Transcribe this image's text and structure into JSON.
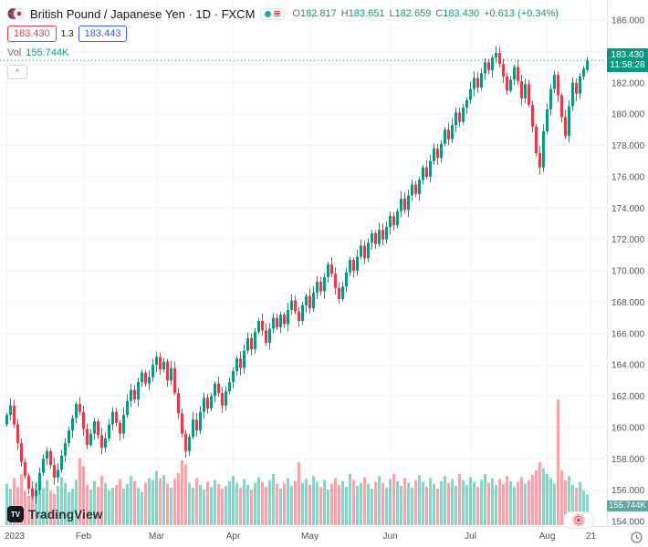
{
  "header": {
    "symbol_title": "British Pound / Japanese Yen · 1D · FXCM",
    "ohlc": {
      "o_label": "O",
      "o": "182.817",
      "h_label": "H",
      "h": "183.651",
      "l_label": "L",
      "l": "182.659",
      "c_label": "C",
      "c": "183.430",
      "change": "+0.613 (+0.34%)"
    },
    "sell": "183.430",
    "spread": "1.3",
    "buy": "183.443",
    "vol_label": "Vol",
    "vol_value": "155.744K"
  },
  "icons": {
    "chevron_up": "^",
    "tv_mark": "TV"
  },
  "badges": {
    "last_price": "183.430",
    "last_time": "11:58:28",
    "volume": "155.744K"
  },
  "footer": {
    "logo_text": "TradingView"
  },
  "chart_data": {
    "type": "candlestick",
    "title": "British Pound / Japanese Yen",
    "interval": "1D",
    "exchange": "FXCM",
    "last": {
      "open": 182.817,
      "high": 183.651,
      "low": 182.659,
      "close": 183.43,
      "change": "+0.613",
      "change_pct": "+0.34%",
      "time": "11:58:28",
      "volume_k": 155.744
    },
    "price_axis": {
      "min": 154,
      "max": 186,
      "step": 2,
      "decimals": 3
    },
    "time_ticks": [
      {
        "label": "2023",
        "index": 0
      },
      {
        "label": "Feb",
        "index": 21
      },
      {
        "label": "Mar",
        "index": 41
      },
      {
        "label": "Apr",
        "index": 62
      },
      {
        "label": "May",
        "index": 83
      },
      {
        "label": "Jun",
        "index": 105
      },
      {
        "label": "Jul",
        "index": 127
      },
      {
        "label": "Aug",
        "index": 148
      },
      {
        "label": "21",
        "index": 160
      }
    ],
    "first_open": 160.2,
    "closes": [
      160.8,
      161.4,
      160.2,
      159.0,
      157.8,
      156.9,
      156.1,
      155.6,
      156.0,
      157.1,
      158.0,
      158.5,
      157.6,
      156.8,
      157.3,
      158.2,
      159.0,
      159.8,
      160.6,
      161.5,
      161.0,
      159.9,
      158.9,
      159.6,
      160.4,
      159.5,
      158.7,
      159.3,
      160.2,
      161.0,
      160.3,
      159.6,
      160.8,
      161.7,
      162.4,
      161.8,
      162.9,
      163.5,
      162.8,
      163.2,
      164.0,
      164.5,
      163.7,
      164.2,
      163.0,
      163.8,
      162.2,
      160.9,
      159.6,
      158.5,
      159.4,
      160.5,
      159.8,
      161.0,
      161.9,
      161.2,
      162.0,
      162.8,
      162.2,
      161.4,
      162.3,
      162.9,
      163.6,
      164.4,
      163.8,
      164.9,
      165.7,
      165.0,
      166.1,
      166.8,
      166.2,
      165.4,
      166.3,
      167.0,
      166.4,
      167.2,
      166.6,
      167.5,
      168.1,
      167.4,
      166.8,
      167.8,
      168.4,
      167.6,
      168.6,
      169.3,
      168.7,
      169.6,
      170.4,
      169.8,
      168.9,
      168.2,
      169.0,
      169.9,
      170.7,
      170.0,
      170.9,
      171.6,
      170.8,
      171.8,
      172.4,
      171.7,
      172.6,
      172.0,
      172.8,
      173.5,
      172.9,
      173.8,
      174.6,
      173.9,
      174.8,
      175.5,
      174.9,
      175.8,
      176.6,
      176.0,
      177.0,
      177.8,
      177.2,
      178.1,
      179.0,
      178.4,
      179.3,
      180.1,
      179.5,
      180.4,
      180.9,
      181.6,
      182.3,
      181.7,
      182.6,
      183.3,
      182.8,
      183.6,
      183.9,
      183.2,
      182.4,
      181.5,
      182.2,
      183.0,
      182.1,
      181.0,
      181.9,
      180.6,
      179.2,
      177.5,
      176.6,
      178.9,
      180.3,
      181.6,
      182.5,
      181.2,
      179.8,
      178.6,
      180.5,
      182.0,
      181.3,
      182.4,
      182.9,
      183.43
    ],
    "volumes_k": [
      210,
      185,
      240,
      195,
      260,
      175,
      150,
      190,
      220,
      205,
      190,
      230,
      175,
      160,
      200,
      245,
      215,
      170,
      185,
      230,
      340,
      300,
      205,
      180,
      225,
      195,
      250,
      215,
      175,
      190,
      205,
      235,
      185,
      210,
      250,
      225,
      190,
      170,
      215,
      240,
      230,
      275,
      240,
      255,
      210,
      190,
      235,
      265,
      330,
      310,
      215,
      190,
      240,
      205,
      180,
      220,
      195,
      230,
      210,
      185,
      200,
      225,
      250,
      215,
      190,
      235,
      205,
      180,
      215,
      245,
      220,
      195,
      230,
      260,
      210,
      185,
      215,
      240,
      200,
      225,
      320,
      215,
      235,
      205,
      250,
      220,
      195,
      230,
      180,
      210,
      240,
      205,
      225,
      195,
      260,
      230,
      200,
      215,
      245,
      210,
      185,
      220,
      250,
      215,
      190,
      235,
      260,
      225,
      200,
      240,
      215,
      190,
      230,
      255,
      220,
      195,
      240,
      210,
      185,
      225,
      250,
      215,
      235,
      200,
      260,
      230,
      205,
      245,
      220,
      195,
      230,
      260,
      215,
      240,
      205,
      235,
      210,
      250,
      225,
      195,
      220,
      245,
      210,
      230,
      255,
      280,
      320,
      290,
      260,
      240,
      210,
      640,
      280,
      230,
      250,
      205,
      190,
      220,
      175,
      155.744
    ],
    "volume_scale_max_k": 650,
    "colors": {
      "up": "#089981",
      "down": "#f23645",
      "volume_up": "rgba(8,153,129,0.45)",
      "volume_down": "rgba(242,54,69,0.45)",
      "grid": "#f0f3fa",
      "axis_text": "#50535e",
      "axis_line": "#e0e3eb",
      "last_price_line": "#089981",
      "price_badge": "#089981",
      "volume_badge": "#5fa8a1",
      "sell": "#f23645",
      "buy": "#2962ff"
    }
  }
}
